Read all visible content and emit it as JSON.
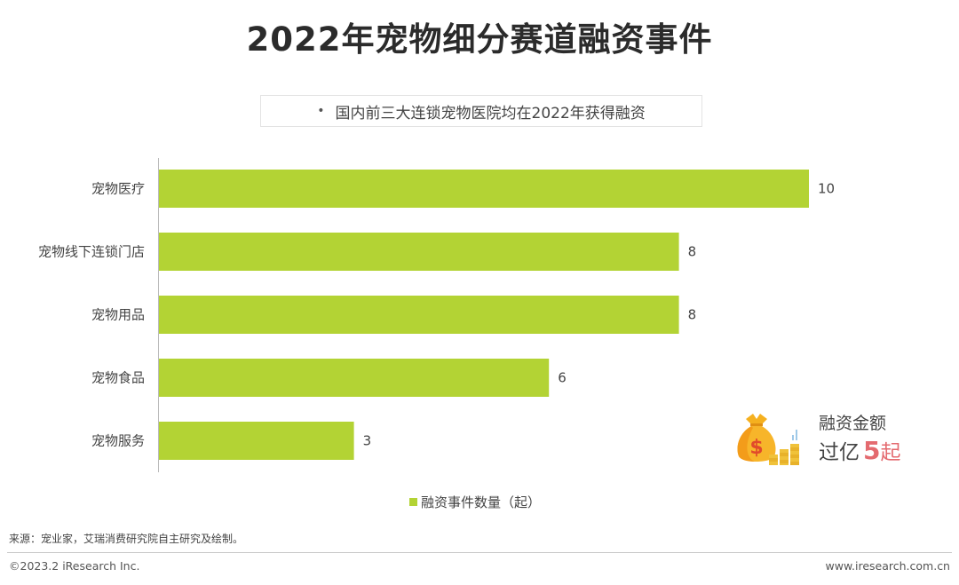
{
  "title": "2022年宠物细分赛道融资事件",
  "note": "国内前三大连锁宠物医院均在2022年获得融资",
  "chart_data": {
    "type": "bar",
    "orientation": "horizontal",
    "categories": [
      "宠物医疗",
      "宠物线下连锁门店",
      "宠物用品",
      "宠物食品",
      "宠物服务"
    ],
    "values": [
      10,
      8,
      8,
      6,
      3
    ],
    "series": [
      {
        "name": "融资事件数量（起）",
        "values": [
          10,
          8,
          8,
          6,
          3
        ]
      }
    ],
    "xlim": [
      0,
      10
    ],
    "bar_color": "#b3d334",
    "grid": false,
    "legend_position": "bottom-center"
  },
  "legend_label": "融资事件数量（起）",
  "callout": {
    "caption": "融资金额",
    "prefix": "过亿",
    "number": "5",
    "unit": "起",
    "accent_color": "#e46a6f",
    "icon": "money-bag-icon"
  },
  "source": "来源：宠业家，艾瑞消费研究院自主研究及绘制。",
  "copyright": "©2023.2 iResearch Inc.",
  "website": "www.iresearch.com.cn"
}
